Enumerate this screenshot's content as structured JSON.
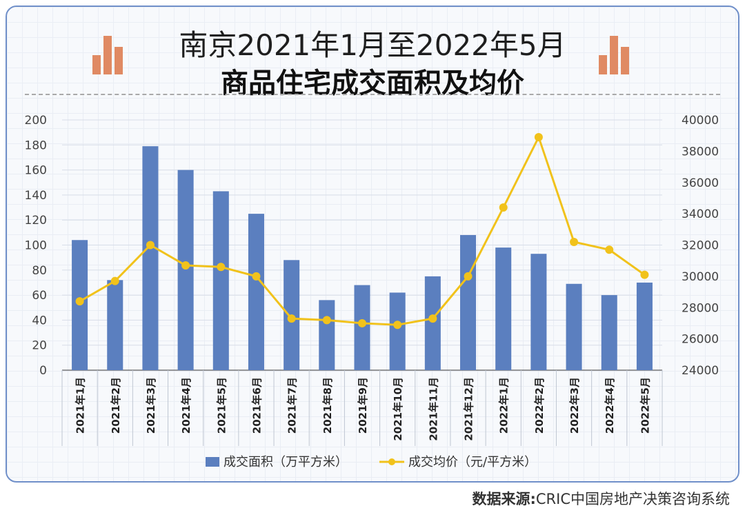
{
  "title": {
    "line1": "南京2021年1月至2022年5月",
    "line2": "商品住宅成交面积及均价"
  },
  "source": {
    "label": "数据来源:",
    "text": "CRIC中国房地产决策咨询系统"
  },
  "colors": {
    "bar": "#5b7fbf",
    "line": "#f1c21b",
    "deco": "#e08a63",
    "frame": "#6f8fc9"
  },
  "chart_data": {
    "type": "bar",
    "categories": [
      "2021年1月",
      "2021年2月",
      "2021年3月",
      "2021年4月",
      "2021年5月",
      "2021年6月",
      "2021年7月",
      "2021年8月",
      "2021年9月",
      "2021年10月",
      "2021年11月",
      "2021年12月",
      "2022年1月",
      "2022年2月",
      "2022年3月",
      "2022年4月",
      "2022年5月"
    ],
    "series": [
      {
        "name": "成交面积（万平方米）",
        "type": "bar",
        "axis": "left",
        "values": [
          104,
          72,
          179,
          160,
          143,
          125,
          88,
          56,
          68,
          62,
          75,
          108,
          98,
          93,
          69,
          60,
          70
        ]
      },
      {
        "name": "成交均价（元/平方米）",
        "type": "line",
        "axis": "right",
        "values": [
          28400,
          29700,
          32000,
          30700,
          30600,
          30000,
          27300,
          27200,
          27000,
          26900,
          27300,
          30000,
          34400,
          38900,
          32200,
          31700,
          30100
        ]
      }
    ],
    "y_left": {
      "min": 0,
      "max": 200,
      "ticks": [
        0,
        20,
        40,
        60,
        80,
        100,
        120,
        140,
        160,
        180,
        200
      ]
    },
    "y_right": {
      "min": 24000,
      "max": 40000,
      "ticks": [
        24000,
        26000,
        28000,
        30000,
        32000,
        34000,
        36000,
        38000,
        40000
      ]
    },
    "legend_position": "bottom",
    "grid": true
  }
}
